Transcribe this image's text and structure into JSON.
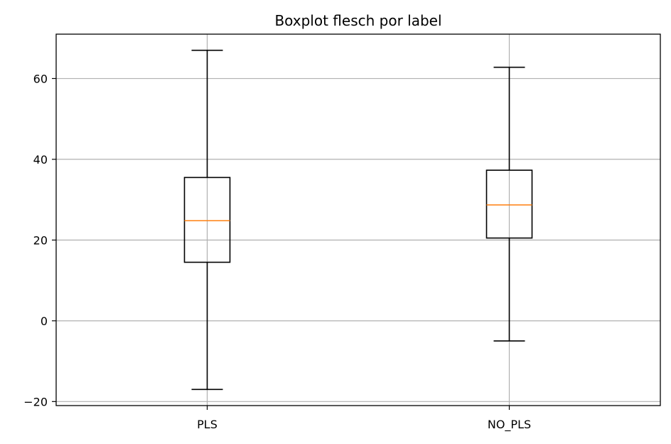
{
  "chart_data": {
    "type": "boxplot",
    "title": "Boxplot flesch por label",
    "xlabel": "",
    "ylabel": "",
    "categories": [
      "PLS",
      "NO_PLS"
    ],
    "boxes": [
      {
        "category": "PLS",
        "whisker_low": -17,
        "q1": 14.5,
        "median": 24.8,
        "q3": 35.5,
        "whisker_high": 67
      },
      {
        "category": "NO_PLS",
        "whisker_low": -5,
        "q1": 20.5,
        "median": 28.7,
        "q3": 37.3,
        "whisker_high": 62.8
      }
    ],
    "yticks": [
      -20,
      0,
      20,
      40,
      60
    ],
    "ylim": [
      -21,
      71
    ],
    "grid": true,
    "colors": {
      "box": "#000000",
      "median": "#ff7f0e",
      "grid": "#b0b0b0"
    }
  }
}
